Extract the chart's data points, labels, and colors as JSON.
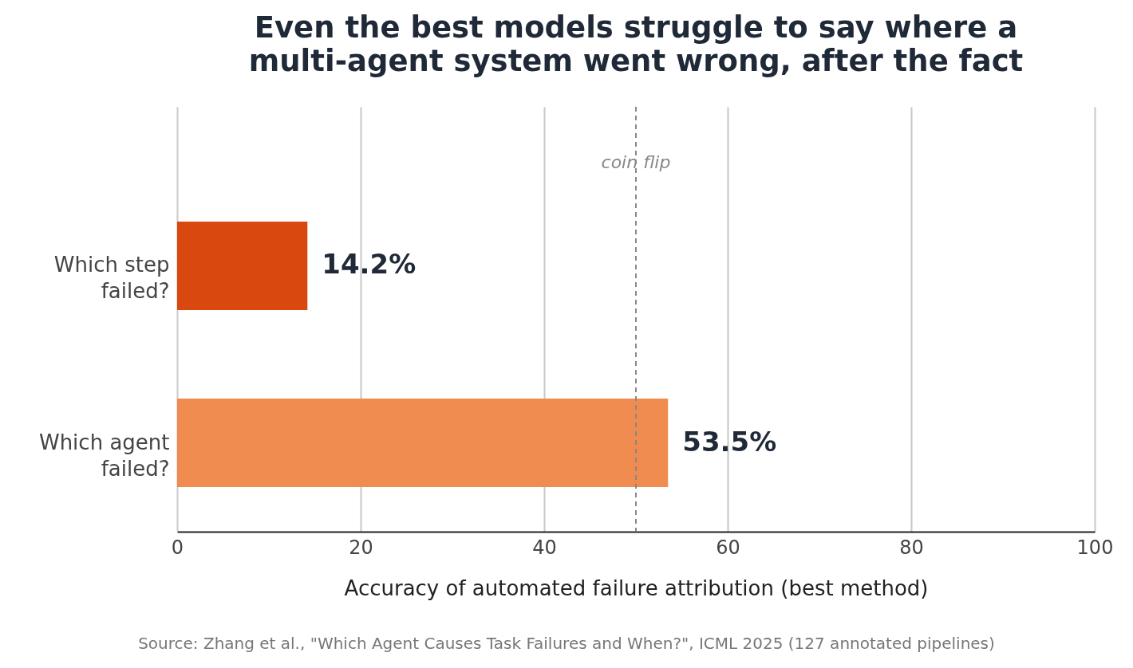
{
  "chart_data": {
    "type": "bar",
    "orientation": "horizontal",
    "title": "Even the best models struggle to say where a multi-agent system went wrong, after the fact",
    "categories": [
      "Which step failed?",
      "Which agent failed?"
    ],
    "values": [
      14.2,
      53.5
    ],
    "colors": [
      "#d9480f",
      "#f08c4f"
    ],
    "value_labels": [
      "14.2%",
      "53.5%"
    ],
    "xlabel": "Accuracy of automated failure attribution (best method)",
    "xlim": [
      0,
      100
    ],
    "xticks": [
      0,
      20,
      40,
      60,
      80,
      100
    ],
    "grid": "x",
    "ref_lines": [
      {
        "axis": "x",
        "value": 50,
        "label": "coin flip",
        "color": "#888888",
        "line_style": "dashed"
      }
    ],
    "annotations": [
      "Source: Zhang et al., \"Which Agent Causes Task Failures and When?\", ICML 2025 (127 annotated pipelines)"
    ]
  }
}
